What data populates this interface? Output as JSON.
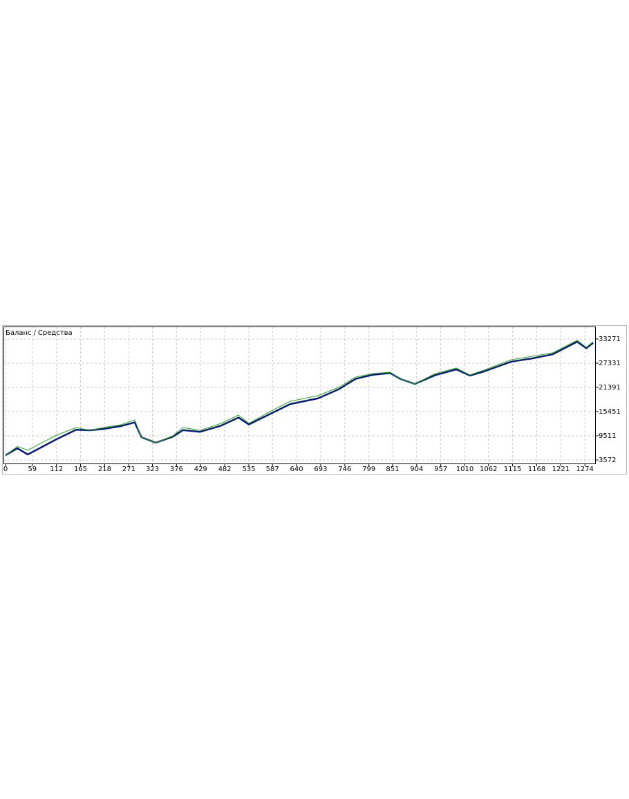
{
  "chart_data": {
    "type": "line",
    "legend_separator": "/",
    "x": [
      0,
      26,
      49,
      109,
      155,
      185,
      215,
      254,
      284,
      299,
      330,
      368,
      390,
      428,
      474,
      512,
      535,
      573,
      626,
      687,
      732,
      770,
      808,
      846,
      869,
      900,
      945,
      991,
      1021,
      1052,
      1112,
      1158,
      1203,
      1257,
      1277,
      1292
    ],
    "series": [
      {
        "name": "Баланс",
        "color": "#0a1a80",
        "width": 2.5,
        "values": [
          4760,
          6460,
          4930,
          8500,
          11000,
          10870,
          11200,
          11900,
          12800,
          9170,
          7810,
          9300,
          10900,
          10500,
          12000,
          14000,
          12300,
          14400,
          17300,
          18700,
          20900,
          23500,
          24500,
          24900,
          23430,
          22240,
          24400,
          25800,
          24300,
          25300,
          27700,
          28500,
          29500,
          32600,
          31000,
          32300
        ]
      },
      {
        "name": "Средства",
        "color": "#22aa22",
        "width": 1,
        "values": [
          4760,
          6900,
          6000,
          9510,
          11550,
          10870,
          11550,
          12230,
          13410,
          9170,
          7810,
          9510,
          11550,
          10870,
          12570,
          14600,
          12570,
          14940,
          18000,
          19350,
          21390,
          23940,
          24780,
          25120,
          23430,
          22240,
          24780,
          26140,
          24450,
          25630,
          28180,
          29030,
          29880,
          32930,
          31230,
          32590
        ]
      }
    ],
    "xlim": [
      0,
      1298
    ],
    "ylim": [
      2723,
      36326
    ],
    "xticks": [
      0,
      59,
      112,
      165,
      218,
      271,
      323,
      376,
      429,
      482,
      535,
      587,
      640,
      693,
      746,
      799,
      851,
      904,
      957,
      1010,
      1062,
      1115,
      1168,
      1221,
      1274
    ],
    "yticks": [
      3572,
      9511,
      15451,
      21391,
      27331,
      33271
    ],
    "grid": true
  }
}
